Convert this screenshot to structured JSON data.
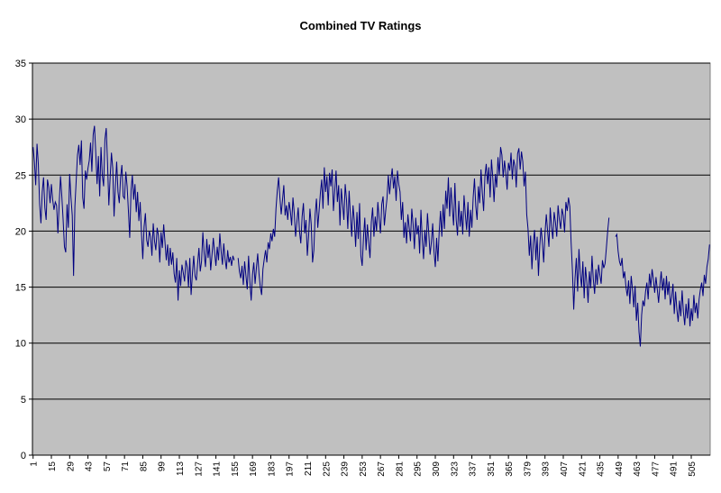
{
  "chart_data": {
    "type": "line",
    "title": "Combined TV Ratings",
    "categories": [
      1,
      null,
      null,
      null,
      null,
      null,
      null,
      null,
      null,
      null,
      null,
      null,
      null,
      null,
      15,
      null,
      null,
      null,
      null,
      null,
      null,
      null,
      null,
      null,
      null,
      null,
      null,
      null,
      29,
      null,
      null,
      null,
      null,
      null,
      null,
      null,
      null,
      null,
      null,
      null,
      null,
      null,
      43,
      null,
      null,
      null,
      null,
      null,
      null,
      null,
      null,
      null,
      null,
      null,
      null,
      null,
      57,
      null,
      null,
      null,
      null,
      null,
      null,
      null,
      null,
      null,
      null,
      null,
      null,
      null,
      71,
      null,
      null,
      null,
      null,
      null,
      null,
      null,
      null,
      null,
      null,
      null,
      null,
      null,
      85,
      null,
      null,
      null,
      null,
      null,
      null,
      null,
      null,
      null,
      null,
      null,
      null,
      null,
      99,
      null,
      null,
      null,
      null,
      null,
      null,
      null,
      null,
      null,
      null,
      null,
      null,
      null,
      113,
      null,
      null,
      null,
      null,
      null,
      null,
      null,
      null,
      null,
      null,
      null,
      null,
      null,
      127,
      null,
      null,
      null,
      null,
      null,
      null,
      null,
      null,
      null,
      null,
      null,
      null,
      null,
      141,
      null,
      null,
      null,
      null,
      null,
      null,
      null,
      null,
      null,
      null,
      null,
      null,
      null,
      155,
      null,
      null,
      null,
      null,
      null,
      null,
      null,
      null,
      null,
      null,
      null,
      null,
      null,
      169,
      null,
      null,
      null,
      null,
      null,
      null,
      null,
      null,
      null,
      null,
      null,
      null,
      null,
      183,
      null,
      null,
      null,
      null,
      null,
      null,
      null,
      null,
      null,
      null,
      null,
      null,
      null,
      197,
      null,
      null,
      null,
      null,
      null,
      null,
      null,
      null,
      null,
      null,
      null,
      null,
      null,
      211,
      null,
      null,
      null,
      null,
      null,
      null,
      null,
      null,
      null,
      null,
      null,
      null,
      null,
      225,
      null,
      null,
      null,
      null,
      null,
      null,
      null,
      null,
      null,
      null,
      null,
      null,
      null,
      239,
      null,
      null,
      null,
      null,
      null,
      null,
      null,
      null,
      null,
      null,
      null,
      null,
      null,
      253,
      null,
      null,
      null,
      null,
      null,
      null,
      null,
      null,
      null,
      null,
      null,
      null,
      null,
      267,
      null,
      null,
      null,
      null,
      null,
      null,
      null,
      null,
      null,
      null,
      null,
      null,
      null,
      281,
      null,
      null,
      null,
      null,
      null,
      null,
      null,
      null,
      null,
      null,
      null,
      null,
      null,
      295,
      null,
      null,
      null,
      null,
      null,
      null,
      null,
      null,
      null,
      null,
      null,
      null,
      null,
      309,
      null,
      null,
      null,
      null,
      null,
      null,
      null,
      null,
      null,
      null,
      null,
      null,
      null,
      323,
      null,
      null,
      null,
      null,
      null,
      null,
      null,
      null,
      null,
      null,
      null,
      null,
      null,
      337,
      null,
      null,
      null,
      null,
      null,
      null,
      null,
      null,
      null,
      null,
      null,
      null,
      null,
      351,
      null,
      null,
      null,
      null,
      null,
      null,
      null,
      null,
      null,
      null,
      null,
      null,
      null,
      365,
      null,
      null,
      null,
      null,
      null,
      null,
      null,
      null,
      null,
      null,
      null,
      null,
      null,
      379,
      null,
      null,
      null,
      null,
      null,
      null,
      null,
      null,
      null,
      null,
      null,
      null,
      null,
      393,
      null,
      null,
      null,
      null,
      null,
      null,
      null,
      null,
      null,
      null,
      null,
      null,
      null,
      407,
      null,
      null,
      null,
      null,
      null,
      null,
      null,
      null,
      null,
      null,
      null,
      null,
      null,
      421,
      null,
      null,
      null,
      null,
      null,
      null,
      null,
      null,
      null,
      null,
      null,
      null,
      null,
      435,
      null,
      null,
      null,
      null,
      null,
      null,
      null,
      null,
      null,
      null,
      null,
      null,
      null,
      449,
      null,
      null,
      null,
      null,
      null,
      null,
      null,
      null,
      null,
      null,
      null,
      null,
      null,
      463,
      null,
      null,
      null,
      null,
      null,
      null,
      null,
      null,
      null,
      null,
      null,
      null,
      null,
      477,
      null,
      null,
      null,
      null,
      null,
      null,
      null,
      null,
      null,
      null,
      null,
      null,
      null,
      491,
      null,
      null,
      null,
      null,
      null,
      null,
      null,
      null,
      null,
      null,
      null,
      null,
      null,
      505,
      null,
      null,
      null,
      null,
      null,
      null,
      null,
      null,
      null,
      null,
      null,
      null,
      null,
      null
    ],
    "series": [
      {
        "color": "#000080",
        "values": [
          27.5,
          26.2,
          24.1,
          27.8,
          26.0,
          22.4,
          20.7,
          23.5,
          24.8,
          22.1,
          21.0,
          24.6,
          23.9,
          22.5,
          24.2,
          22.8,
          21.9,
          22.6,
          22.3,
          19.8,
          22.5,
          24.9,
          23.1,
          21.0,
          18.6,
          18.1,
          22.4,
          20.3,
          25.1,
          23.0,
          21.4,
          16.0,
          22.2,
          24.5,
          26.8,
          27.7,
          25.9,
          28.1,
          23.0,
          22.0,
          25.4,
          24.6,
          25.6,
          26.3,
          27.9,
          25.3,
          28.6,
          29.4,
          27.0,
          24.2,
          26.7,
          23.1,
          27.5,
          25.0,
          24.0,
          28.2,
          29.2,
          26.1,
          22.3,
          24.8,
          27.0,
          25.6,
          21.3,
          24.0,
          26.2,
          23.5,
          22.5,
          24.8,
          25.9,
          23.1,
          22.9,
          25.3,
          24.0,
          21.8,
          19.4,
          23.6,
          25.0,
          22.8,
          24.2,
          21.7,
          23.5,
          20.9,
          22.6,
          19.8,
          17.5,
          20.4,
          21.6,
          19.2,
          18.6,
          20.0,
          19.5,
          17.8,
          20.7,
          19.1,
          18.3,
          20.3,
          19.6,
          17.2,
          19.9,
          18.5,
          20.6,
          19.0,
          17.4,
          18.8,
          16.9,
          18.5,
          17.0,
          18.1,
          16.2,
          15.4,
          17.6,
          13.8,
          16.5,
          15.1,
          17.0,
          16.3,
          15.5,
          17.4,
          16.8,
          15.0,
          17.6,
          14.3,
          16.2,
          17.8,
          16.0,
          15.6,
          17.1,
          18.5,
          16.4,
          17.3,
          19.9,
          18.0,
          16.8,
          19.3,
          17.6,
          18.8,
          16.5,
          17.9,
          19.4,
          18.1,
          16.9,
          18.6,
          17.4,
          19.8,
          18.2,
          17.0,
          18.9,
          17.5,
          16.6,
          18.3,
          17.2,
          17.7,
          16.9,
          17.8,
          17.4,
          null,
          null,
          17.6,
          16.4,
          15.8,
          16.9,
          15.2,
          17.3,
          16.0,
          14.8,
          17.8,
          15.5,
          13.8,
          16.1,
          17.2,
          15.3,
          16.7,
          18.0,
          16.2,
          15.0,
          14.3,
          16.6,
          17.5,
          18.3,
          17.2,
          19.0,
          18.4,
          19.8,
          19.1,
          20.2,
          19.5,
          22.0,
          23.6,
          24.8,
          23.0,
          21.5,
          22.8,
          24.1,
          21.4,
          22.3,
          21.0,
          22.6,
          21.8,
          20.5,
          23.0,
          21.6,
          19.5,
          20.8,
          22.1,
          20.0,
          18.9,
          21.3,
          22.5,
          19.8,
          21.0,
          17.8,
          19.6,
          22.0,
          20.6,
          17.2,
          18.3,
          21.5,
          22.9,
          20.3,
          21.8,
          23.4,
          24.6,
          22.0,
          25.7,
          23.5,
          24.9,
          22.3,
          25.2,
          24.0,
          25.5,
          21.8,
          23.6,
          25.4,
          22.6,
          24.1,
          20.5,
          23.8,
          22.4,
          21.0,
          24.2,
          22.8,
          20.2,
          23.6,
          21.4,
          19.5,
          22.3,
          20.9,
          18.6,
          21.7,
          19.3,
          22.5,
          17.8,
          16.9,
          19.4,
          21.2,
          18.3,
          20.6,
          19.0,
          17.6,
          20.8,
          22.1,
          19.5,
          21.3,
          20.0,
          22.6,
          21.1,
          19.8,
          22.4,
          23.1,
          20.5,
          21.8,
          22.9,
          25.0,
          23.3,
          24.6,
          25.6,
          23.8,
          24.9,
          22.7,
          25.4,
          24.2,
          23.5,
          21.0,
          22.6,
          19.4,
          20.8,
          18.9,
          21.5,
          20.3,
          19.1,
          22.0,
          20.6,
          18.4,
          21.2,
          19.7,
          20.5,
          18.0,
          21.9,
          19.3,
          17.5,
          20.1,
          18.6,
          21.6,
          19.8,
          17.9,
          19.0,
          20.7,
          18.2,
          16.8,
          19.4,
          17.3,
          20.0,
          21.8,
          19.5,
          22.4,
          20.2,
          23.6,
          22.0,
          24.8,
          21.3,
          23.9,
          22.1,
          20.5,
          24.3,
          21.0,
          19.6,
          22.7,
          20.4,
          21.8,
          19.7,
          23.2,
          21.5,
          20.1,
          22.6,
          19.5,
          21.9,
          20.3,
          23.0,
          24.7,
          22.2,
          21.0,
          24.0,
          22.5,
          25.5,
          23.4,
          21.8,
          24.9,
          26.0,
          24.2,
          25.7,
          23.0,
          26.4,
          24.8,
          22.6,
          25.1,
          23.9,
          26.6,
          25.0,
          27.5,
          26.8,
          24.8,
          26.3,
          25.2,
          23.7,
          26.1,
          25.4,
          27.0,
          24.6,
          26.4,
          25.8,
          23.9,
          26.9,
          27.4,
          25.5,
          27.1,
          26.2,
          24.0,
          25.3,
          21.5,
          20.2,
          17.8,
          19.6,
          16.6,
          18.9,
          20.1,
          17.4,
          19.5,
          16.0,
          18.7,
          20.3,
          19.0,
          17.2,
          19.8,
          21.5,
          20.0,
          18.6,
          22.1,
          20.4,
          19.3,
          21.7,
          20.8,
          19.5,
          22.3,
          21.0,
          20.2,
          22.0,
          21.4,
          19.9,
          22.6,
          21.8,
          23.0,
          22.2,
          19.0,
          16.5,
          13.0,
          15.8,
          17.6,
          14.6,
          18.4,
          16.2,
          15.0,
          17.3,
          14.0,
          16.8,
          15.5,
          13.6,
          16.4,
          14.9,
          17.8,
          15.7,
          14.4,
          16.6,
          15.2,
          17.0,
          16.1,
          15.3,
          17.4,
          16.7,
          17.1,
          18.5,
          20.0,
          21.2,
          null,
          null,
          null,
          null,
          19.5,
          19.7,
          18.2,
          17.3,
          16.9,
          17.6,
          15.8,
          16.4,
          15.0,
          14.2,
          15.6,
          13.5,
          16.0,
          14.8,
          13.2,
          15.1,
          12.0,
          13.6,
          11.0,
          9.7,
          12.5,
          13.8,
          13.3,
          14.6,
          15.4,
          13.9,
          16.2,
          15.0,
          16.6,
          15.7,
          14.5,
          15.9,
          14.8,
          13.6,
          15.2,
          16.4,
          14.7,
          15.8,
          13.9,
          16.0,
          14.3,
          15.5,
          13.4,
          14.1,
          15.3,
          12.6,
          14.6,
          13.0,
          11.9,
          13.8,
          12.4,
          14.7,
          12.8,
          11.6,
          13.5,
          12.2,
          14.0,
          11.5,
          13.1,
          12.0,
          14.3,
          12.7,
          13.6,
          12.2,
          13.9,
          14.8,
          15.4,
          14.2,
          16.1,
          15.3,
          16.8,
          17.5,
          18.8
        ]
      }
    ],
    "ylim": [
      0,
      35
    ],
    "yticks": [
      0,
      5,
      10,
      15,
      20,
      25,
      30,
      35
    ],
    "grid": true
  }
}
